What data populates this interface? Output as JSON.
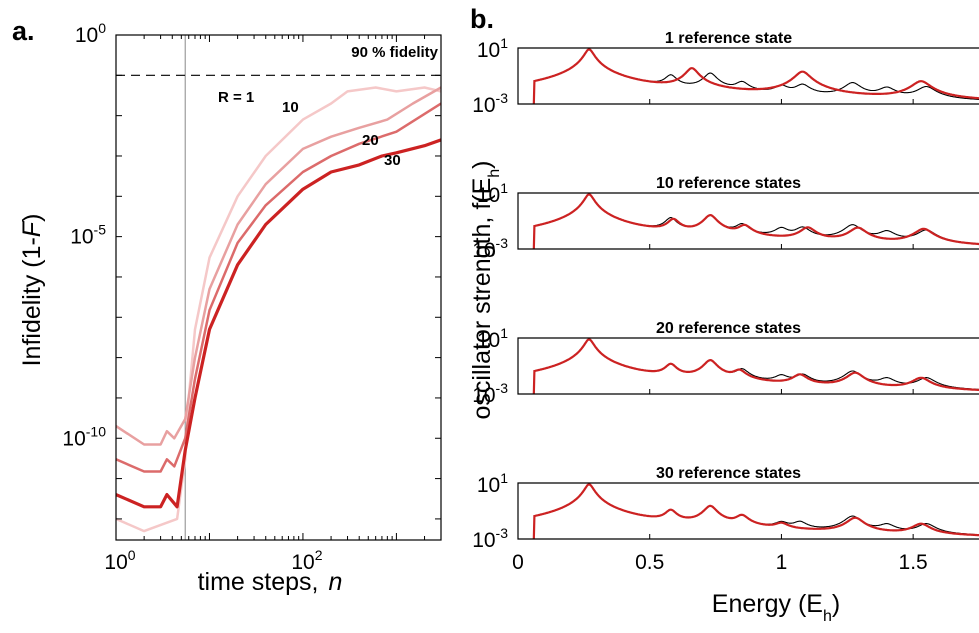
{
  "chart_data": [
    {
      "type": "line",
      "panel_label": "a.",
      "xlabel": "time steps,",
      "xlabel_var": "n",
      "ylabel_prefix": "Infidelity (1-",
      "ylabel_var": "F",
      "ylabel_suffix": ")",
      "xscale": "log",
      "yscale": "log",
      "xlim": [
        1,
        3000
      ],
      "ylim": [
        3e-13,
        1
      ],
      "x_ticks": [
        {
          "base": "10",
          "exp": "0",
          "value": 1
        },
        {
          "base": "10",
          "exp": "2",
          "value": 100
        }
      ],
      "y_ticks": [
        {
          "base": "10",
          "exp": "0",
          "value": 1
        },
        {
          "base": "10",
          "exp": "-5",
          "value": 1e-05
        },
        {
          "base": "10",
          "exp": "-10",
          "value": 1e-10
        }
      ],
      "reference_line": {
        "y": 0.1,
        "label": "90 % fidelity"
      },
      "vertical_marker_x": 5.5,
      "series": [
        {
          "name": "R = 1",
          "color": "#f5c8c8",
          "width": 2.5,
          "points": [
            [
              1,
              1e-12
            ],
            [
              2,
              5e-13
            ],
            [
              4.5,
              1e-12
            ],
            [
              5.5,
              3e-11
            ],
            [
              6,
              1e-09
            ],
            [
              7,
              5e-08
            ],
            [
              10,
              3e-06
            ],
            [
              20,
              0.0001
            ],
            [
              40,
              0.001
            ],
            [
              100,
              0.008
            ],
            [
              200,
              0.02
            ],
            [
              300,
              0.04
            ],
            [
              600,
              0.05
            ],
            [
              1000,
              0.04
            ],
            [
              2000,
              0.05
            ],
            [
              3000,
              0.04
            ]
          ]
        },
        {
          "name": "10",
          "color": "#e8a0a0",
          "width": 2.5,
          "points": [
            [
              1,
              2e-10
            ],
            [
              2,
              7e-11
            ],
            [
              3,
              7e-11
            ],
            [
              3.5,
              1.5e-10
            ],
            [
              4.2,
              1e-10
            ],
            [
              5.5,
              3e-10
            ],
            [
              7,
              1e-08
            ],
            [
              10,
              5e-07
            ],
            [
              20,
              2e-05
            ],
            [
              40,
              0.0002
            ],
            [
              100,
              0.0015
            ],
            [
              200,
              0.003
            ],
            [
              400,
              0.005
            ],
            [
              800,
              0.008
            ],
            [
              1500,
              0.02
            ],
            [
              3000,
              0.05
            ]
          ]
        },
        {
          "name": "20",
          "color": "#dc6b6b",
          "width": 2.5,
          "points": [
            [
              1,
              3e-11
            ],
            [
              2,
              1.5e-11
            ],
            [
              3,
              1.5e-11
            ],
            [
              3.5,
              3e-11
            ],
            [
              4.2,
              2e-11
            ],
            [
              5.5,
              1e-10
            ],
            [
              7,
              3e-09
            ],
            [
              10,
              1.5e-07
            ],
            [
              20,
              7e-06
            ],
            [
              40,
              6e-05
            ],
            [
              100,
              0.0004
            ],
            [
              200,
              0.001
            ],
            [
              400,
              0.002
            ],
            [
              1000,
              0.004
            ],
            [
              3000,
              0.02
            ]
          ]
        },
        {
          "name": "30",
          "color": "#cc2222",
          "width": 3.2,
          "points": [
            [
              1,
              4e-12
            ],
            [
              2,
              2e-12
            ],
            [
              3,
              2e-12
            ],
            [
              3.5,
              4e-12
            ],
            [
              4.5,
              2e-12
            ],
            [
              5.5,
              5e-11
            ],
            [
              7,
              1e-09
            ],
            [
              10,
              5e-08
            ],
            [
              20,
              2e-06
            ],
            [
              40,
              2e-05
            ],
            [
              100,
              0.00015
            ],
            [
              200,
              0.0004
            ],
            [
              400,
              0.0006
            ],
            [
              700,
              0.001
            ],
            [
              1000,
              0.0012
            ],
            [
              2000,
              0.0018
            ],
            [
              3000,
              0.0025
            ]
          ]
        }
      ]
    },
    {
      "type": "line",
      "panel_label": "b.",
      "xlabel_main": "Energy (E",
      "xlabel_sub": "h",
      "xlabel_end": ")",
      "ylabel_main": "oscillator strength, f(E",
      "ylabel_sub": "h",
      "ylabel_end": ")",
      "xlim": [
        0,
        1.75
      ],
      "ylim_log": [
        0.001,
        10
      ],
      "x_ticks": [
        "0",
        "0.5",
        "1",
        "1.5"
      ],
      "x_tick_values": [
        0,
        0.5,
        1,
        1.5
      ],
      "y_tick_base": "10",
      "y_tick_exp_top": "1",
      "y_tick_exp_bottom": "-3",
      "panels": [
        {
          "title": "1 reference state",
          "exact_peaks": [
            [
              0.27,
              8.0
            ],
            [
              0.58,
              0.1
            ],
            [
              0.73,
              0.15
            ],
            [
              0.85,
              0.03
            ],
            [
              1.0,
              0.015
            ],
            [
              1.08,
              0.02
            ],
            [
              1.27,
              0.03
            ],
            [
              1.4,
              0.012
            ],
            [
              1.55,
              0.015
            ]
          ],
          "approx_peaks": [
            [
              0.27,
              8.0
            ],
            [
              0.66,
              0.35
            ],
            [
              1.08,
              0.2
            ],
            [
              1.53,
              0.04
            ]
          ]
        },
        {
          "title": "10 reference states",
          "exact_peaks": [
            [
              0.27,
              8.0
            ],
            [
              0.58,
              0.15
            ],
            [
              0.73,
              0.25
            ],
            [
              0.85,
              0.05
            ],
            [
              1.0,
              0.025
            ],
            [
              1.08,
              0.03
            ],
            [
              1.27,
              0.05
            ],
            [
              1.4,
              0.015
            ],
            [
              1.55,
              0.02
            ]
          ],
          "approx_peaks": [
            [
              0.27,
              8.0
            ],
            [
              0.59,
              0.12
            ],
            [
              0.73,
              0.25
            ],
            [
              0.86,
              0.04
            ],
            [
              1.1,
              0.03
            ],
            [
              1.29,
              0.03
            ],
            [
              1.54,
              0.025
            ]
          ]
        },
        {
          "title": "20 reference states",
          "exact_peaks": [
            [
              0.27,
              8.0
            ],
            [
              0.58,
              0.12
            ],
            [
              0.73,
              0.25
            ],
            [
              0.85,
              0.05
            ],
            [
              1.0,
              0.015
            ],
            [
              1.08,
              0.02
            ],
            [
              1.27,
              0.04
            ],
            [
              1.4,
              0.01
            ],
            [
              1.55,
              0.012
            ]
          ],
          "approx_peaks": [
            [
              0.27,
              8.0
            ],
            [
              0.58,
              0.12
            ],
            [
              0.73,
              0.25
            ],
            [
              0.84,
              0.04
            ],
            [
              1.07,
              0.02
            ],
            [
              1.28,
              0.03
            ],
            [
              1.53,
              0.012
            ]
          ]
        },
        {
          "title": "30 reference states",
          "exact_peaks": [
            [
              0.27,
              8.0
            ],
            [
              0.58,
              0.1
            ],
            [
              0.73,
              0.22
            ],
            [
              0.85,
              0.04
            ],
            [
              1.0,
              0.01
            ],
            [
              1.07,
              0.012
            ],
            [
              1.27,
              0.04
            ],
            [
              1.4,
              0.008
            ],
            [
              1.55,
              0.01
            ]
          ],
          "approx_peaks": [
            [
              0.27,
              8.0
            ],
            [
              0.58,
              0.1
            ],
            [
              0.73,
              0.22
            ],
            [
              0.85,
              0.04
            ],
            [
              1.0,
              0.008
            ],
            [
              1.28,
              0.03
            ],
            [
              1.53,
              0.01
            ]
          ]
        }
      ],
      "colors": {
        "exact": "#000000",
        "approx": "#cc2222"
      }
    }
  ]
}
